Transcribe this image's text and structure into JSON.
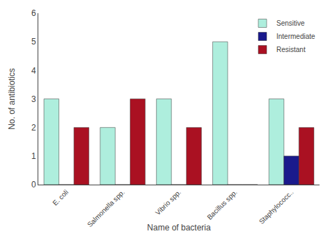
{
  "chart_data": {
    "type": "bar",
    "categories": [
      "E. coli",
      "Salmonella spp.",
      "Vibrio spp.",
      "Bacillus spp.",
      "Staphylococc.."
    ],
    "series": [
      {
        "name": "Sensitive",
        "color": "#aeeedd",
        "values": [
          3,
          2,
          3,
          5,
          3
        ]
      },
      {
        "name": "Intermediate",
        "color": "#1a1a8c",
        "values": [
          0,
          0,
          0,
          0,
          1
        ]
      },
      {
        "name": "Resistant",
        "color": "#aa1122",
        "values": [
          2,
          3,
          2,
          0,
          2
        ]
      }
    ],
    "xlabel": "Name of bacteria",
    "ylabel": "No. of antibiotics",
    "ylim": [
      0,
      6
    ],
    "yticks": [
      0,
      1,
      2,
      3,
      4,
      5,
      6
    ],
    "grid": false,
    "legend": "upper right"
  }
}
